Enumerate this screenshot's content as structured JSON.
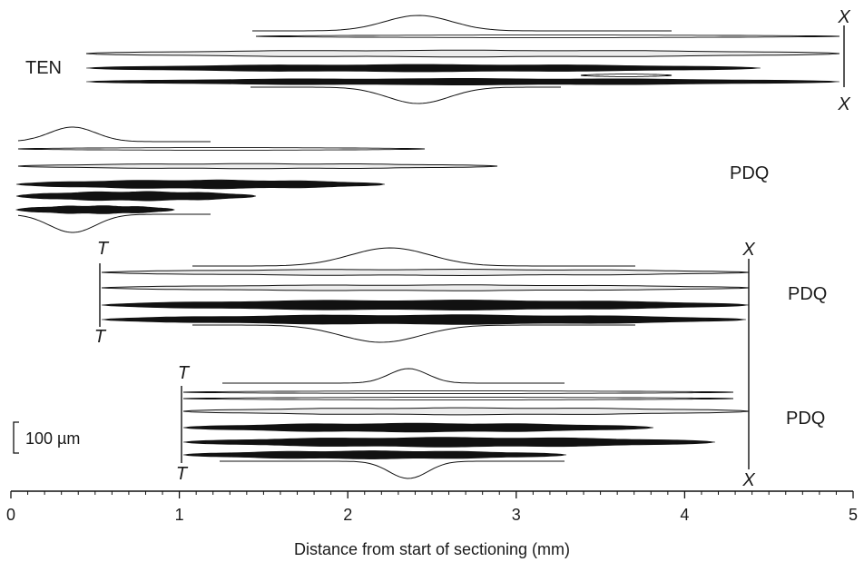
{
  "diagram": {
    "end_marker_x": "X",
    "end_marker_t": "T",
    "groups": [
      {
        "label": "TEN"
      },
      {
        "label": "PDQ"
      },
      {
        "label": "PDQ"
      },
      {
        "label": "PDQ"
      }
    ],
    "axis": {
      "title": "Distance from start of sectioning (mm)",
      "ticks": [
        "0",
        "1",
        "2",
        "3",
        "4",
        "5"
      ],
      "range_mm": [
        0,
        5
      ]
    },
    "scale_bar": {
      "label": "100 µm"
    },
    "colors": {
      "ink": "#111111",
      "light_fibre_fill": "#ededed"
    }
  }
}
